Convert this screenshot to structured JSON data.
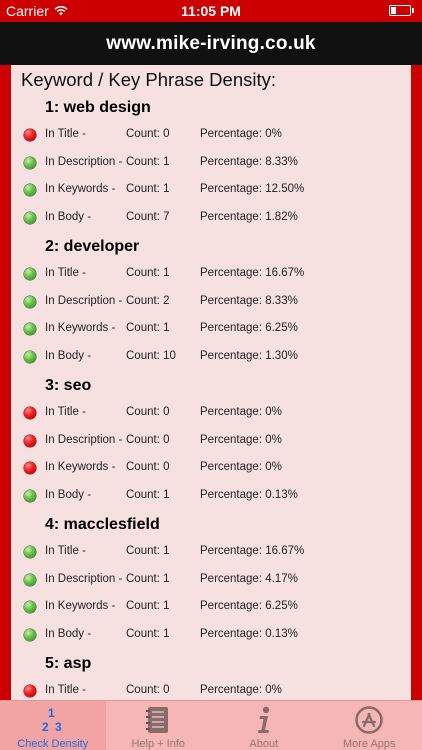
{
  "status_bar": {
    "carrier": "Carrier",
    "time": "11:05 PM"
  },
  "url": "www.mike-irving.co.uk",
  "heading": "Keyword / Key Phrase Density:",
  "sections": [
    {
      "title": "1: web design",
      "rows": [
        {
          "status": "red",
          "label": "In Title -",
          "count": "Count: 0",
          "percent": "Percentage: 0%"
        },
        {
          "status": "green",
          "label": "In Description -",
          "count": "Count: 1",
          "percent": "Percentage: 8.33%"
        },
        {
          "status": "green",
          "label": "In Keywords -",
          "count": "Count: 1",
          "percent": "Percentage: 12.50%"
        },
        {
          "status": "green",
          "label": "In Body -",
          "count": "Count: 7",
          "percent": "Percentage: 1.82%"
        }
      ]
    },
    {
      "title": "2: developer",
      "rows": [
        {
          "status": "green",
          "label": "In Title -",
          "count": "Count: 1",
          "percent": "Percentage: 16.67%"
        },
        {
          "status": "green",
          "label": "In Description -",
          "count": "Count: 2",
          "percent": "Percentage: 8.33%"
        },
        {
          "status": "green",
          "label": "In Keywords -",
          "count": "Count: 1",
          "percent": "Percentage: 6.25%"
        },
        {
          "status": "green",
          "label": "In Body -",
          "count": "Count: 10",
          "percent": "Percentage: 1.30%"
        }
      ]
    },
    {
      "title": "3: seo",
      "rows": [
        {
          "status": "red",
          "label": "In Title -",
          "count": "Count: 0",
          "percent": "Percentage: 0%"
        },
        {
          "status": "red",
          "label": "In Description -",
          "count": "Count: 0",
          "percent": "Percentage: 0%"
        },
        {
          "status": "red",
          "label": "In Keywords -",
          "count": "Count: 0",
          "percent": "Percentage: 0%"
        },
        {
          "status": "green",
          "label": "In Body -",
          "count": "Count: 1",
          "percent": "Percentage: 0.13%"
        }
      ]
    },
    {
      "title": "4: macclesfield",
      "rows": [
        {
          "status": "green",
          "label": "In Title -",
          "count": "Count: 1",
          "percent": "Percentage: 16.67%"
        },
        {
          "status": "green",
          "label": "In Description -",
          "count": "Count: 1",
          "percent": "Percentage: 4.17%"
        },
        {
          "status": "green",
          "label": "In Keywords -",
          "count": "Count: 1",
          "percent": "Percentage: 6.25%"
        },
        {
          "status": "green",
          "label": "In Body -",
          "count": "Count: 1",
          "percent": "Percentage: 0.13%"
        }
      ]
    },
    {
      "title": "5: asp",
      "rows": [
        {
          "status": "red",
          "label": "In Title -",
          "count": "Count: 0",
          "percent": "Percentage: 0%"
        }
      ]
    }
  ],
  "tabs": [
    {
      "label": "Check Density",
      "icon": "numbers-icon",
      "active": true
    },
    {
      "label": "Help + Info",
      "icon": "notebook-icon",
      "active": false
    },
    {
      "label": "About",
      "icon": "info-icon",
      "active": false
    },
    {
      "label": "More Apps",
      "icon": "app-store-icon",
      "active": false
    }
  ],
  "colors": {
    "accent": "#cc0000",
    "active_tab": "#1a6fe0",
    "tab_bg": "#f6b6b6",
    "content_bg": "#f7e0e0"
  }
}
